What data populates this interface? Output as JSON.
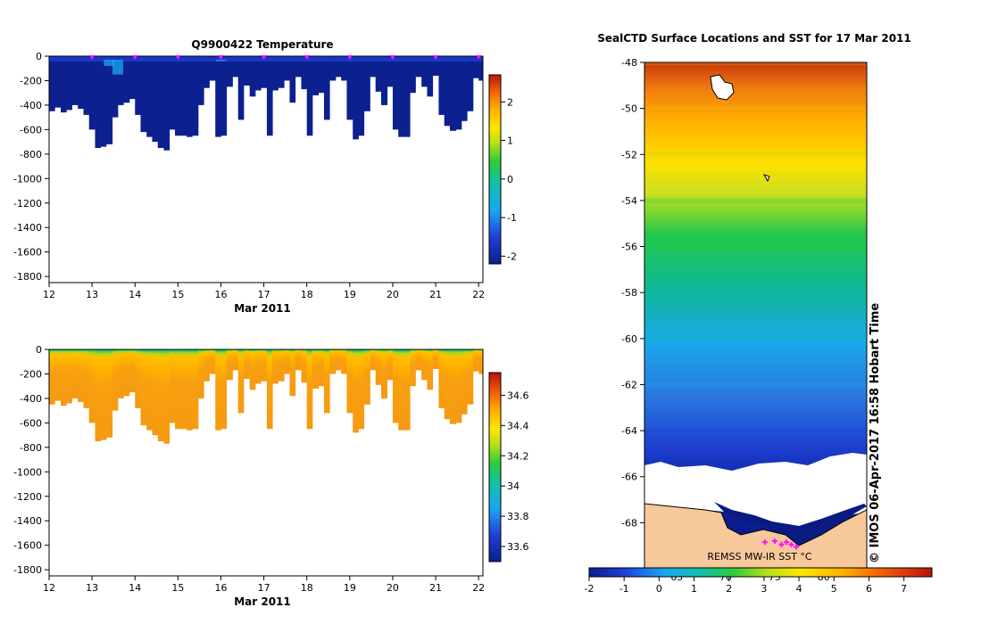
{
  "chart_data": [
    {
      "type": "heatmap",
      "title": "Q9900422  Temperature",
      "xlabel": "Mar 2011",
      "ylabel": "",
      "xlim": [
        12,
        22.1
      ],
      "ylim": [
        -1850,
        0
      ],
      "x_ticks": [
        "12",
        "13",
        "14",
        "15",
        "16",
        "17",
        "18",
        "19",
        "20",
        "21",
        "22"
      ],
      "y_ticks": [
        "0",
        "-200",
        "-400",
        "-600",
        "-800",
        "-1000",
        "-1200",
        "-1400",
        "-1600",
        "-1800"
      ],
      "colorbar_range": [
        -2.2,
        2.7
      ],
      "colorbar_ticks": [
        "2",
        "1",
        "0",
        "-1",
        "-2"
      ],
      "colorbar_tick_values": [
        2,
        1,
        0,
        -1,
        -2
      ],
      "profile_markers_day": [
        13,
        14,
        15,
        16,
        17,
        18,
        19,
        20,
        21,
        22
      ],
      "profile_days": [
        12.0,
        12.13,
        12.27,
        12.4,
        12.53,
        12.67,
        12.8,
        12.93,
        13.07,
        13.2,
        13.33,
        13.47,
        13.6,
        13.73,
        13.87,
        14.0,
        14.13,
        14.27,
        14.4,
        14.53,
        14.67,
        14.8,
        14.93,
        15.07,
        15.2,
        15.33,
        15.47,
        15.6,
        15.73,
        15.87,
        16.0,
        16.13,
        16.27,
        16.4,
        16.53,
        16.67,
        16.8,
        16.93,
        17.07,
        17.2,
        17.33,
        17.47,
        17.6,
        17.73,
        17.87,
        18.0,
        18.13,
        18.27,
        18.4,
        18.53,
        18.67,
        18.8,
        18.93,
        19.07,
        19.2,
        19.33,
        19.47,
        19.6,
        19.73,
        19.87,
        20.0,
        20.13,
        20.27,
        20.4,
        20.53,
        20.67,
        20.8,
        20.93,
        21.07,
        21.2,
        21.33,
        21.47,
        21.6,
        21.73,
        21.87,
        22.0
      ],
      "profile_max_depth_m": [
        450,
        420,
        460,
        440,
        400,
        430,
        480,
        600,
        750,
        740,
        720,
        500,
        400,
        380,
        350,
        480,
        620,
        660,
        700,
        750,
        770,
        600,
        650,
        650,
        660,
        650,
        400,
        260,
        200,
        660,
        650,
        250,
        170,
        520,
        240,
        330,
        280,
        260,
        650,
        280,
        260,
        200,
        380,
        170,
        270,
        650,
        320,
        300,
        520,
        200,
        170,
        200,
        520,
        680,
        650,
        450,
        170,
        290,
        400,
        250,
        600,
        660,
        660,
        300,
        170,
        250,
        330,
        160,
        480,
        570,
        610,
        600,
        530,
        450,
        180,
        200
      ],
      "anomalies": [
        {
          "day": 13.4,
          "depth_m": 80,
          "value": -0.8
        },
        {
          "day": 13.6,
          "depth_m": 150,
          "value": -0.9
        },
        {
          "day": 16.0,
          "depth_m": 40,
          "value": -0.9
        }
      ]
    },
    {
      "type": "heatmap",
      "title": "",
      "xlabel": "Mar 2011",
      "ylabel": "",
      "variable": "salinity",
      "xlim": [
        12,
        22.1
      ],
      "ylim": [
        -1850,
        0
      ],
      "x_ticks": [
        "12",
        "13",
        "14",
        "15",
        "16",
        "17",
        "18",
        "19",
        "20",
        "21",
        "22"
      ],
      "y_ticks": [
        "0",
        "-200",
        "-400",
        "-600",
        "-800",
        "-1000",
        "-1200",
        "-1400",
        "-1600",
        "-1800"
      ],
      "colorbar_range": [
        33.5,
        34.75
      ],
      "colorbar_ticks": [
        "34.6",
        "34.4",
        "34.2",
        "34",
        "33.8",
        "33.6"
      ],
      "colorbar_tick_values": [
        34.6,
        34.4,
        34.2,
        34.0,
        33.8,
        33.6
      ],
      "surface_value": 33.95,
      "deep_value": 34.5
    },
    {
      "type": "heatmap",
      "title": "SealCTD Surface Locations and SST for 17 Mar 2011",
      "xlabel": "",
      "ylabel": "",
      "lat_range": [
        -70,
        -48
      ],
      "y_ticks": [
        "-48",
        "-50",
        "-52",
        "-54",
        "-56",
        "-58",
        "-60",
        "-62",
        "-64",
        "-66",
        "-68"
      ],
      "y_tick_values": [
        -48,
        -50,
        -52,
        -54,
        -56,
        -58,
        -60,
        -62,
        -64,
        -66,
        -68
      ],
      "lon_ticks": [
        "65",
        "70",
        "75",
        "80"
      ],
      "lon_range": [
        61.7,
        84.4
      ],
      "colorbar_label": "REMSS MW-IR SST °C",
      "colorbar_range": [
        -2,
        7.8
      ],
      "colorbar_ticks": [
        "-2",
        "-1",
        "0",
        "1",
        "2",
        "3",
        "4",
        "5",
        "6",
        "7"
      ],
      "colorbar_tick_values": [
        -2,
        -1,
        0,
        1,
        2,
        3,
        4,
        5,
        6,
        7
      ],
      "sst_by_latitude": [
        {
          "lat": -48,
          "sst": 5.6
        },
        {
          "lat": -50,
          "sst": 5.0
        },
        {
          "lat": -52,
          "sst": 3.8
        },
        {
          "lat": -54,
          "sst": 2.6
        },
        {
          "lat": -56,
          "sst": 2.2
        },
        {
          "lat": -58,
          "sst": 1.6
        },
        {
          "lat": -60,
          "sst": 1.1
        },
        {
          "lat": -62,
          "sst": 0.6
        },
        {
          "lat": -64,
          "sst": -0.5
        },
        {
          "lat": -65.8,
          "sst": -1.8
        }
      ],
      "ice_edge_lat": -66,
      "coast_lat": -68.3,
      "seal_track_markers": [
        {
          "lon": 74.0,
          "lat": -68.85
        },
        {
          "lon": 75.0,
          "lat": -68.8
        },
        {
          "lon": 75.7,
          "lat": -68.95
        },
        {
          "lon": 76.2,
          "lat": -68.85
        },
        {
          "lon": 76.7,
          "lat": -68.95
        },
        {
          "lon": 77.2,
          "lat": -69.05
        }
      ],
      "stamp": "© IMOS 06-Apr-2017 16:58 Hobart Time"
    }
  ]
}
